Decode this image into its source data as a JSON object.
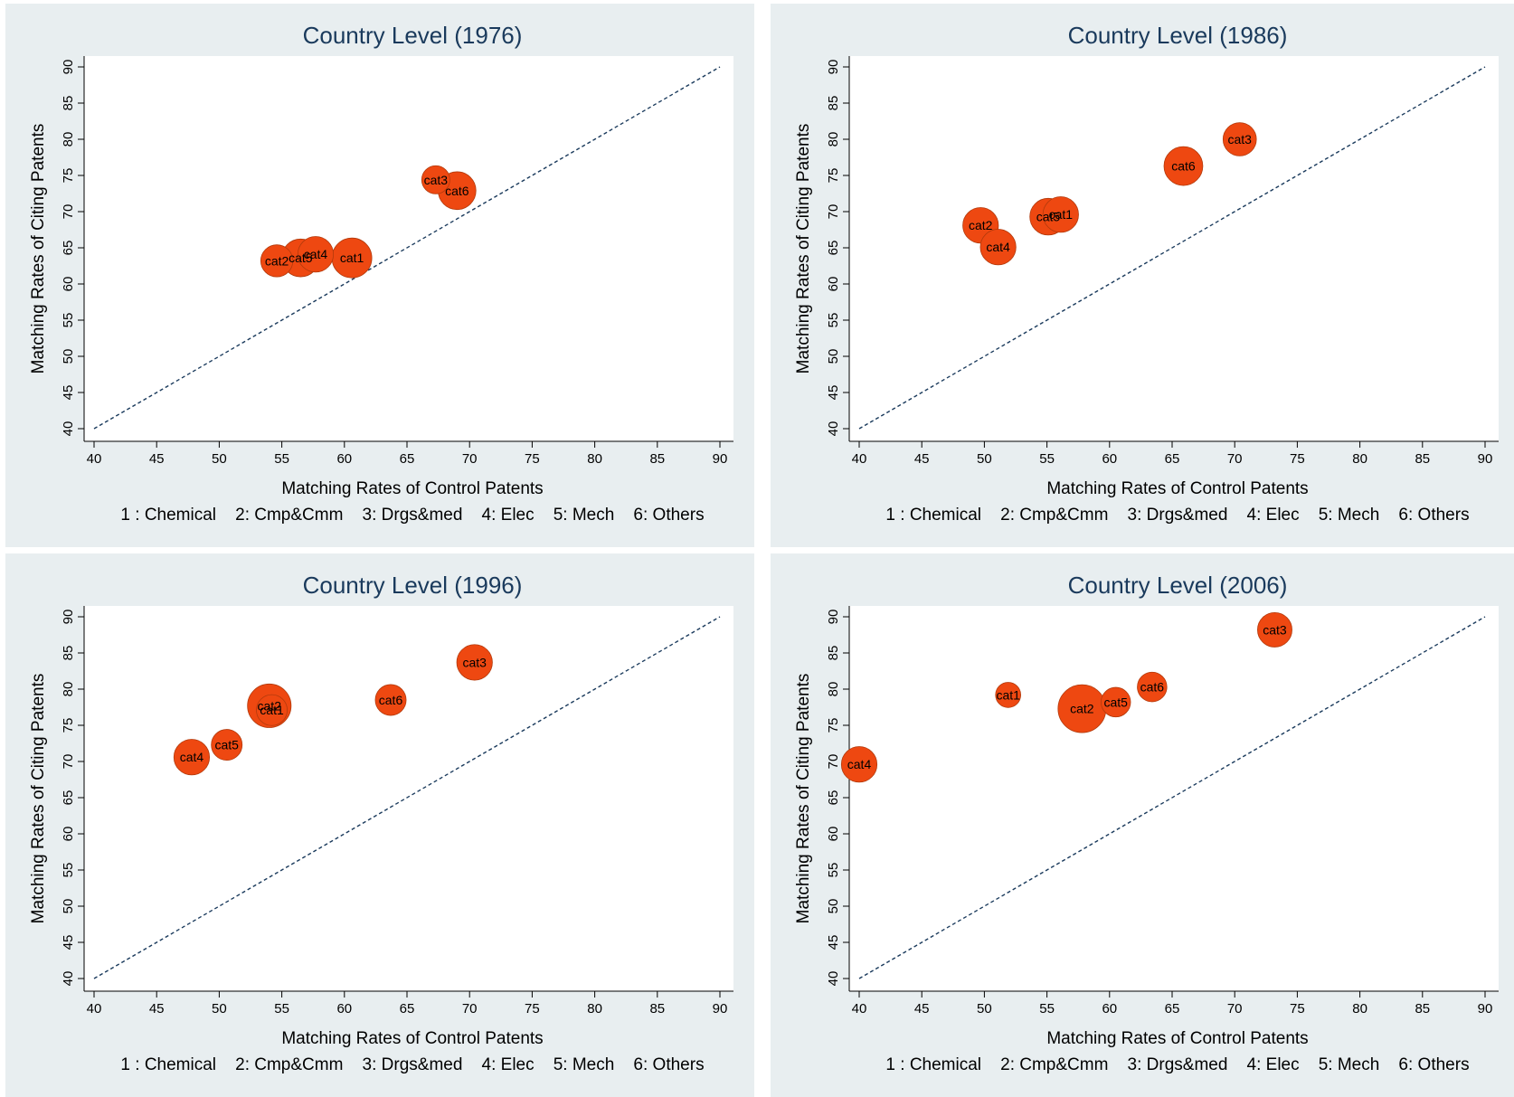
{
  "chart_data": [
    {
      "type": "scatter",
      "title": "Country Level (1976)",
      "xlabel": "Matching Rates of Control Patents",
      "ylabel": "Matching Rates of Citing Patents",
      "xlim": [
        40,
        90
      ],
      "ylim": [
        40,
        90
      ],
      "xticks": [
        "40",
        "45",
        "50",
        "55",
        "60",
        "65",
        "70",
        "75",
        "80",
        "85",
        "90"
      ],
      "yticks": [
        "40",
        "45",
        "50",
        "55",
        "60",
        "65",
        "70",
        "75",
        "80",
        "85",
        "90"
      ],
      "note": "1 : Chemical    2: Cmp&Cmm    3: Drgs&med    4: Elec    5: Mech    6: Others",
      "reference_line": "y = x",
      "points": [
        {
          "label": "cat1",
          "x": 60.6,
          "y": 63.6,
          "size": 1.0
        },
        {
          "label": "cat2",
          "x": 54.6,
          "y": 63.2,
          "size": 0.65
        },
        {
          "label": "cat3",
          "x": 67.3,
          "y": 74.4,
          "size": 0.5
        },
        {
          "label": "cat4",
          "x": 57.7,
          "y": 64.1,
          "size": 0.8
        },
        {
          "label": "cat5",
          "x": 56.5,
          "y": 63.6,
          "size": 0.9
        },
        {
          "label": "cat6",
          "x": 69.0,
          "y": 72.9,
          "size": 0.9
        }
      ]
    },
    {
      "type": "scatter",
      "title": "Country Level (1986)",
      "xlabel": "Matching Rates of Control Patents",
      "ylabel": "Matching Rates of Citing Patents",
      "xlim": [
        40,
        90
      ],
      "ylim": [
        40,
        90
      ],
      "xticks": [
        "40",
        "45",
        "50",
        "55",
        "60",
        "65",
        "70",
        "75",
        "80",
        "85",
        "90"
      ],
      "yticks": [
        "40",
        "45",
        "50",
        "55",
        "60",
        "65",
        "70",
        "75",
        "80",
        "85",
        "90"
      ],
      "note": "1 : Chemical    2: Cmp&Cmm    3: Drgs&med    4: Elec    5: Mech    6: Others",
      "reference_line": "y = x",
      "points": [
        {
          "label": "cat1",
          "x": 56.1,
          "y": 69.6,
          "size": 0.8
        },
        {
          "label": "cat2",
          "x": 49.7,
          "y": 68.1,
          "size": 0.8
        },
        {
          "label": "cat3",
          "x": 70.4,
          "y": 80.0,
          "size": 0.7
        },
        {
          "label": "cat4",
          "x": 51.1,
          "y": 65.1,
          "size": 0.8
        },
        {
          "label": "cat5",
          "x": 55.1,
          "y": 69.3,
          "size": 0.85
        },
        {
          "label": "cat6",
          "x": 65.9,
          "y": 76.3,
          "size": 0.95
        }
      ]
    },
    {
      "type": "scatter",
      "title": "Country Level (1996)",
      "xlabel": "Matching Rates of Control Patents",
      "ylabel": "Matching Rates of Citing Patents",
      "xlim": [
        40,
        90
      ],
      "ylim": [
        40,
        90
      ],
      "xticks": [
        "40",
        "45",
        "50",
        "55",
        "60",
        "65",
        "70",
        "75",
        "80",
        "85",
        "90"
      ],
      "yticks": [
        "40",
        "45",
        "50",
        "55",
        "60",
        "65",
        "70",
        "75",
        "80",
        "85",
        "90"
      ],
      "note": "1 : Chemical    2: Cmp&Cmm    3: Drgs&med    4: Elec    5: Mech    6: Others",
      "reference_line": "y = x",
      "points": [
        {
          "label": "cat1",
          "x": 54.2,
          "y": 77.1,
          "size": 0.6
        },
        {
          "label": "cat2",
          "x": 54.0,
          "y": 77.7,
          "size": 1.2
        },
        {
          "label": "cat3",
          "x": 70.4,
          "y": 83.7,
          "size": 0.8
        },
        {
          "label": "cat4",
          "x": 47.8,
          "y": 70.6,
          "size": 0.8
        },
        {
          "label": "cat5",
          "x": 50.6,
          "y": 72.3,
          "size": 0.6
        },
        {
          "label": "cat6",
          "x": 63.7,
          "y": 78.5,
          "size": 0.6
        }
      ]
    },
    {
      "type": "scatter",
      "title": "Country Level (2006)",
      "xlabel": "Matching Rates of Control Patents",
      "ylabel": "Matching Rates of Citing Patents",
      "xlim": [
        40,
        90
      ],
      "ylim": [
        40,
        90
      ],
      "xticks": [
        "40",
        "45",
        "50",
        "55",
        "60",
        "65",
        "70",
        "75",
        "80",
        "85",
        "90"
      ],
      "yticks": [
        "40",
        "45",
        "50",
        "55",
        "60",
        "65",
        "70",
        "75",
        "80",
        "85",
        "90"
      ],
      "note": "1 : Chemical    2: Cmp&Cmm    3: Drgs&med    4: Elec    5: Mech    6: Others",
      "reference_line": "y = x",
      "points": [
        {
          "label": "cat1",
          "x": 51.9,
          "y": 79.2,
          "size": 0.4
        },
        {
          "label": "cat2",
          "x": 57.8,
          "y": 77.3,
          "size": 1.45
        },
        {
          "label": "cat3",
          "x": 73.2,
          "y": 88.2,
          "size": 0.75
        },
        {
          "label": "cat4",
          "x": 40.0,
          "y": 69.6,
          "size": 0.8
        },
        {
          "label": "cat5",
          "x": 60.5,
          "y": 78.2,
          "size": 0.55
        },
        {
          "label": "cat6",
          "x": 63.4,
          "y": 80.3,
          "size": 0.55
        }
      ]
    }
  ],
  "colors": {
    "bubble": "#ee4811",
    "bubble_edge": "#b23a0c",
    "title": "#1a3a5c",
    "reference_line": "#1a3a5c",
    "panel_bg": "#e8eef0",
    "plot_bg": "#ffffff"
  }
}
